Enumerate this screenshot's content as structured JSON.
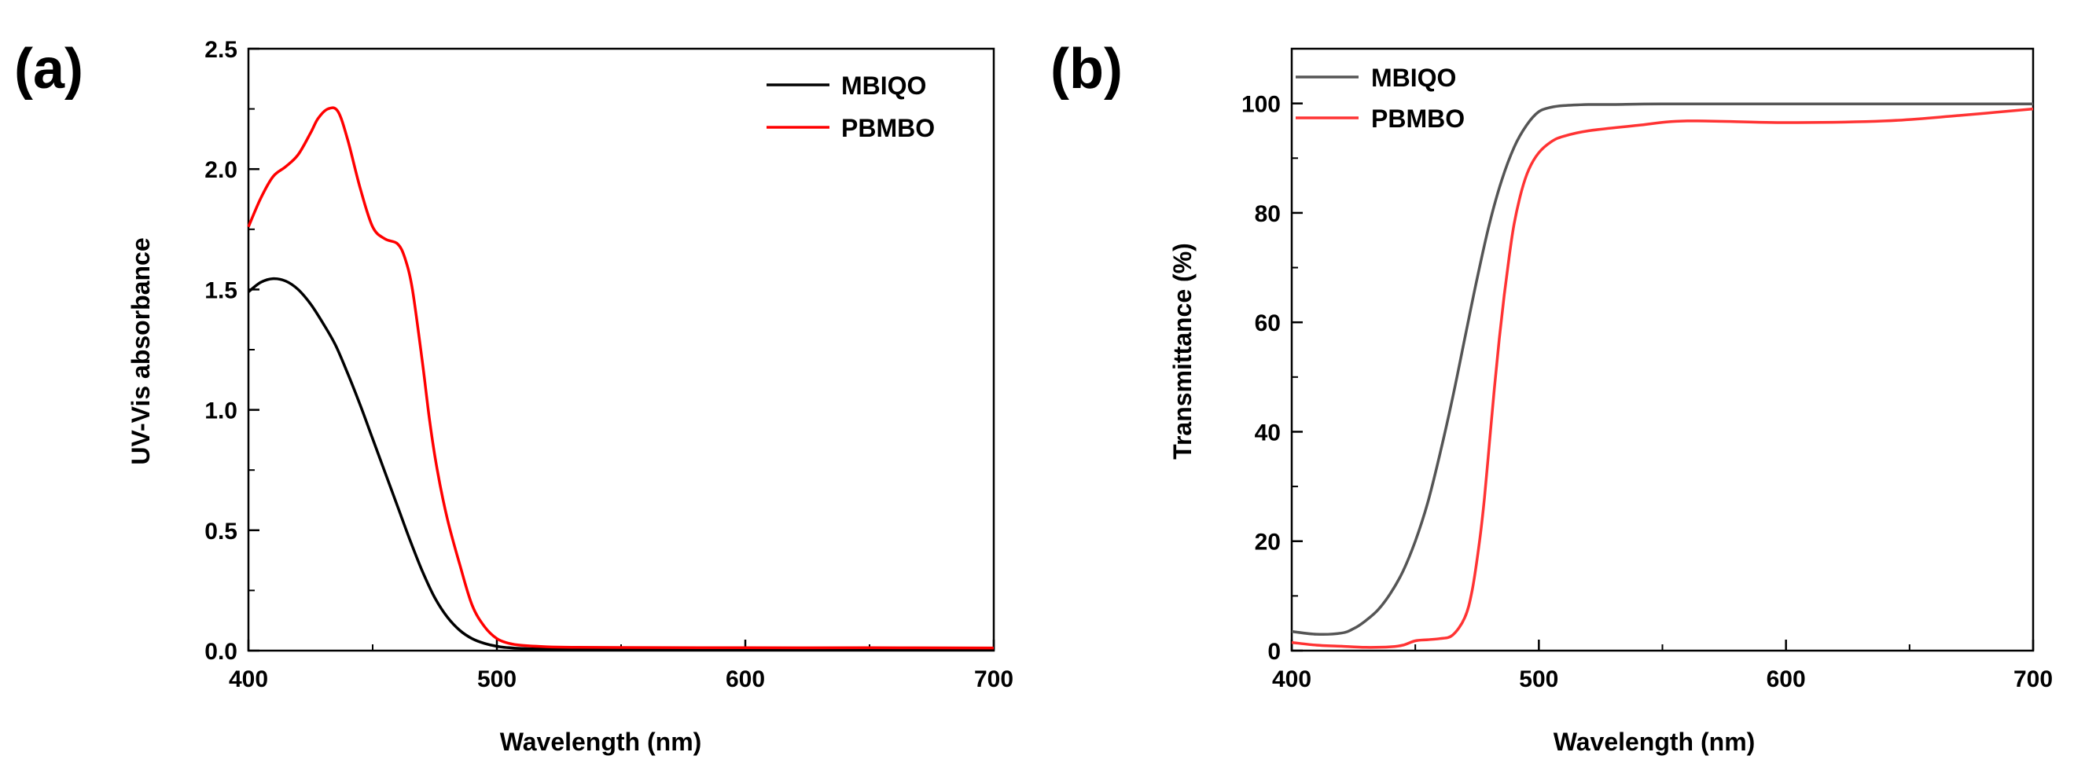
{
  "chart_data": [
    {
      "type": "line",
      "panel_label": "(a)",
      "title": "",
      "xlabel": "Wavelength (nm)",
      "ylabel": "UV-Vis absorbance",
      "xlim": [
        400,
        700
      ],
      "ylim": [
        0,
        2.5
      ],
      "xticks": [
        400,
        500,
        600,
        700
      ],
      "yticks": [
        0.0,
        0.5,
        1.0,
        1.5,
        2.0,
        2.5
      ],
      "xtick_labels": [
        "400",
        "500",
        "600",
        "700"
      ],
      "ytick_labels": [
        "0.0",
        "0.5",
        "1.0",
        "1.5",
        "2.0",
        "2.5"
      ],
      "legend_position": "top-right",
      "series": [
        {
          "name": "MBIQO",
          "color": "#000000",
          "x": [
            400,
            405,
            410,
            415,
            420,
            425,
            430,
            435,
            440,
            445,
            450,
            455,
            460,
            465,
            470,
            475,
            480,
            485,
            490,
            495,
            500,
            505,
            510,
            520,
            530,
            550,
            600,
            650,
            700
          ],
          "y": [
            1.49,
            1.53,
            1.545,
            1.535,
            1.5,
            1.44,
            1.36,
            1.27,
            1.15,
            1.02,
            0.88,
            0.74,
            0.6,
            0.46,
            0.33,
            0.22,
            0.14,
            0.085,
            0.05,
            0.03,
            0.018,
            0.012,
            0.009,
            0.007,
            0.006,
            0.005,
            0.005,
            0.004,
            0.004
          ]
        },
        {
          "name": "PBMBO",
          "color": "#ff0000",
          "x": [
            400,
            405,
            410,
            415,
            420,
            425,
            428,
            432,
            436,
            440,
            445,
            450,
            455,
            460,
            463,
            466,
            470,
            473,
            476,
            480,
            485,
            490,
            495,
            500,
            505,
            510,
            520,
            530,
            550,
            600,
            650,
            700
          ],
          "y": [
            1.76,
            1.88,
            1.97,
            2.01,
            2.06,
            2.15,
            2.21,
            2.25,
            2.24,
            2.12,
            1.92,
            1.76,
            1.71,
            1.69,
            1.63,
            1.5,
            1.2,
            0.95,
            0.75,
            0.55,
            0.36,
            0.19,
            0.1,
            0.05,
            0.03,
            0.022,
            0.016,
            0.014,
            0.013,
            0.012,
            0.012,
            0.011
          ]
        }
      ]
    },
    {
      "type": "line",
      "panel_label": "(b)",
      "title": "",
      "xlabel": "Wavelength (nm)",
      "ylabel": "Transmittance (%)",
      "xlim": [
        400,
        700
      ],
      "ylim": [
        0,
        110
      ],
      "xticks": [
        400,
        500,
        600,
        700
      ],
      "yticks": [
        0,
        20,
        40,
        60,
        80,
        100
      ],
      "xtick_labels": [
        "400",
        "500",
        "600",
        "700"
      ],
      "ytick_labels": [
        "0",
        "20",
        "40",
        "60",
        "80",
        "100"
      ],
      "legend_position": "top-left",
      "series": [
        {
          "name": "MBIQO",
          "color": "#555555",
          "x": [
            400,
            410,
            420,
            425,
            430,
            435,
            440,
            445,
            450,
            455,
            460,
            465,
            470,
            475,
            480,
            485,
            490,
            495,
            500,
            505,
            510,
            520,
            530,
            550,
            600,
            650,
            700
          ],
          "y": [
            3.5,
            3.0,
            3.2,
            4.0,
            5.5,
            7.5,
            10.5,
            14.5,
            20.0,
            27.0,
            36.0,
            46.0,
            57.0,
            68.0,
            78.0,
            86.0,
            92.0,
            96.0,
            98.5,
            99.3,
            99.6,
            99.8,
            99.8,
            99.9,
            99.9,
            99.9,
            99.9
          ]
        },
        {
          "name": "PBMBO",
          "color": "#ff3333",
          "x": [
            400,
            410,
            420,
            430,
            440,
            445,
            450,
            455,
            460,
            465,
            470,
            473,
            476,
            478,
            480,
            482,
            484,
            486,
            488,
            490,
            493,
            496,
            500,
            505,
            510,
            520,
            540,
            560,
            600,
            640,
            670,
            700
          ],
          "y": [
            1.5,
            1.0,
            0.8,
            0.6,
            0.7,
            1.0,
            1.8,
            2.0,
            2.2,
            2.8,
            6.0,
            11.0,
            20.0,
            28.0,
            38.0,
            48.0,
            57.0,
            65.0,
            72.0,
            78.0,
            84.0,
            88.0,
            91.0,
            93.0,
            94.0,
            95.0,
            96.0,
            96.8,
            96.5,
            96.8,
            97.8,
            99.0
          ]
        }
      ]
    }
  ]
}
